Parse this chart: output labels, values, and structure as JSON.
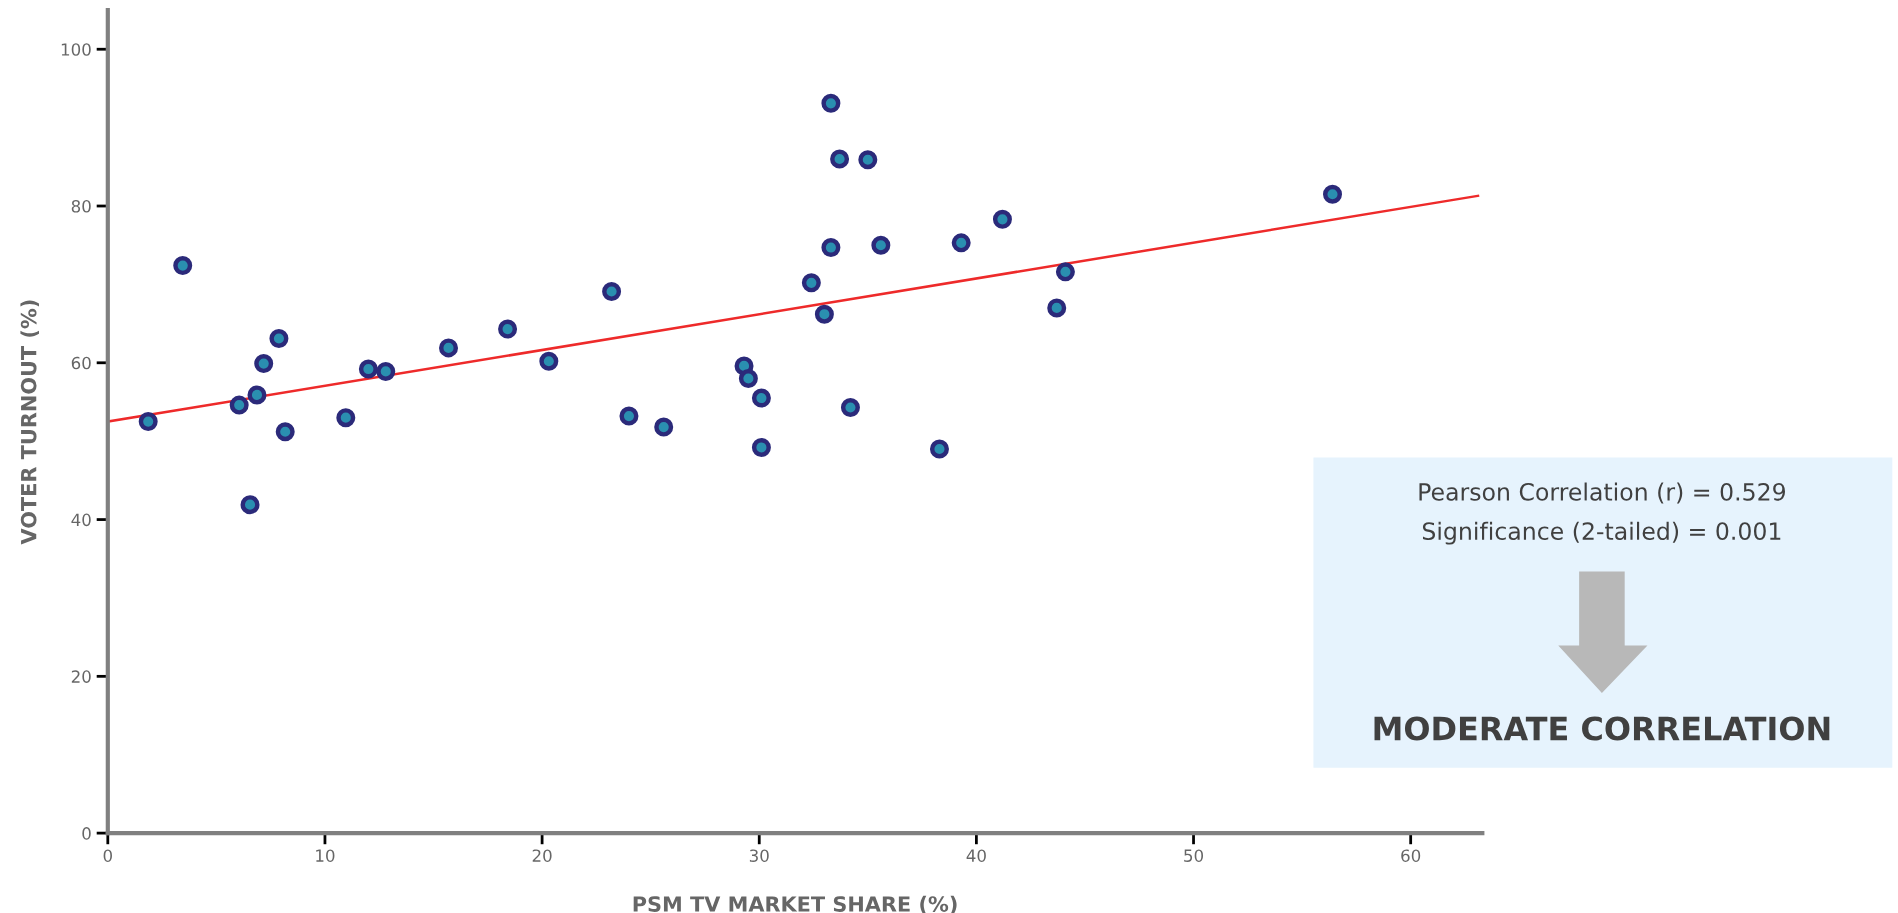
{
  "chart_data": {
    "type": "scatter",
    "xlabel": "PSM TV MARKET SHARE (%)",
    "ylabel": "VOTER TURNOUT (%)",
    "xlim": [
      0,
      63.3
    ],
    "ylim": [
      0,
      105
    ],
    "xticks": [
      0,
      10,
      20,
      30,
      40,
      50,
      60
    ],
    "yticks": [
      0,
      20,
      40,
      60,
      80,
      100
    ],
    "grid": false,
    "series": [
      {
        "marker": "circle",
        "color": "#2a8fb0",
        "x": [
          1.86,
          3.45,
          6.05,
          6.55,
          6.87,
          7.18,
          7.88,
          8.17,
          10.96,
          12.0,
          12.8,
          15.69,
          18.41,
          20.31,
          23.2,
          24.0,
          25.6,
          29.3,
          29.5,
          30.1,
          30.1,
          32.4,
          33.0,
          33.3,
          33.3,
          33.7,
          34.2,
          35.0,
          35.6,
          38.3,
          39.3,
          41.2,
          43.7,
          44.1,
          56.4
        ],
        "values": [
          52.5,
          72.4,
          54.6,
          41.9,
          55.9,
          59.9,
          63.1,
          51.2,
          53.0,
          59.2,
          58.9,
          61.9,
          64.3,
          60.2,
          69.1,
          53.2,
          51.8,
          59.6,
          58.0,
          55.5,
          49.2,
          70.2,
          66.2,
          93.1,
          74.7,
          86.0,
          54.3,
          85.9,
          75.0,
          49.0,
          75.3,
          78.3,
          67.0,
          71.6,
          81.5
        ]
      },
      {
        "type": "line",
        "color": "#ee2a2a",
        "x": [
          0,
          63.1
        ],
        "values": [
          52.5,
          81.3
        ]
      }
    ],
    "annotations": [
      "Pearson Correlation (r) = 0.529",
      "Significance (2-tailed) = 0.001",
      "MODERATE CORRELATION"
    ]
  }
}
